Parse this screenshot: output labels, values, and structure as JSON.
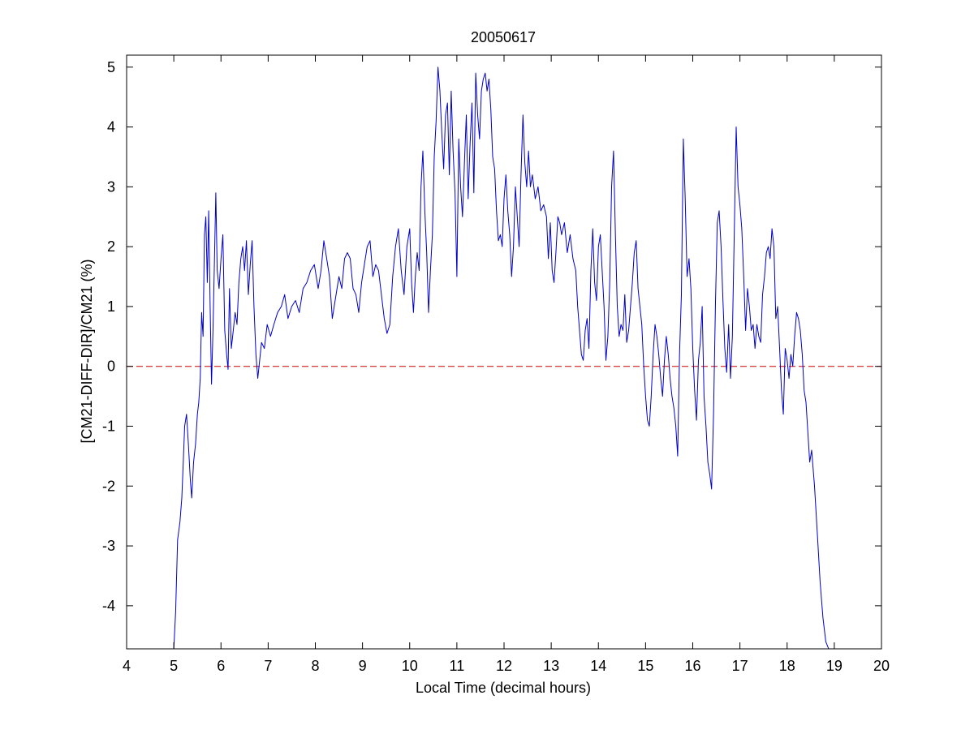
{
  "chart_data": {
    "type": "line",
    "title": "20050617",
    "xlabel": "Local Time (decimal hours)",
    "ylabel": "[CM21-DIFF-DIR]/CM21 (%)",
    "xlim": [
      4,
      20
    ],
    "ylim": [
      -4.72,
      5.2
    ],
    "xticks": [
      4,
      5,
      6,
      7,
      8,
      9,
      10,
      11,
      12,
      13,
      14,
      15,
      16,
      17,
      18,
      19,
      20
    ],
    "yticks": [
      -4,
      -3,
      -2,
      -1,
      0,
      1,
      2,
      3,
      4,
      5
    ],
    "grid": false,
    "reference_line": {
      "y": 0,
      "color": "#cc0000",
      "style": "dashed"
    },
    "series": [
      {
        "color": "#0000cc",
        "points": [
          [
            5.0,
            -4.72
          ],
          [
            5.04,
            -4.1
          ],
          [
            5.08,
            -2.9
          ],
          [
            5.13,
            -2.6
          ],
          [
            5.17,
            -2.2
          ],
          [
            5.2,
            -1.6
          ],
          [
            5.23,
            -1.0
          ],
          [
            5.27,
            -0.8
          ],
          [
            5.31,
            -1.3
          ],
          [
            5.35,
            -1.9
          ],
          [
            5.38,
            -2.2
          ],
          [
            5.42,
            -1.6
          ],
          [
            5.46,
            -1.3
          ],
          [
            5.5,
            -0.8
          ],
          [
            5.53,
            -0.6
          ],
          [
            5.56,
            -0.2
          ],
          [
            5.59,
            0.9
          ],
          [
            5.62,
            0.5
          ],
          [
            5.65,
            2.2
          ],
          [
            5.68,
            2.5
          ],
          [
            5.71,
            1.4
          ],
          [
            5.74,
            2.6
          ],
          [
            5.77,
            1.0
          ],
          [
            5.8,
            -0.3
          ],
          [
            5.83,
            0.6
          ],
          [
            5.86,
            1.7
          ],
          [
            5.89,
            2.9
          ],
          [
            5.92,
            1.6
          ],
          [
            5.96,
            1.3
          ],
          [
            6.0,
            1.8
          ],
          [
            6.04,
            2.2
          ],
          [
            6.08,
            0.6
          ],
          [
            6.12,
            0.2
          ],
          [
            6.15,
            -0.05
          ],
          [
            6.18,
            1.3
          ],
          [
            6.22,
            0.3
          ],
          [
            6.26,
            0.6
          ],
          [
            6.3,
            0.9
          ],
          [
            6.34,
            0.7
          ],
          [
            6.38,
            1.4
          ],
          [
            6.42,
            1.8
          ],
          [
            6.46,
            2.0
          ],
          [
            6.5,
            1.6
          ],
          [
            6.54,
            2.1
          ],
          [
            6.58,
            1.2
          ],
          [
            6.62,
            1.7
          ],
          [
            6.66,
            2.1
          ],
          [
            6.7,
            1.0
          ],
          [
            6.74,
            0.2
          ],
          [
            6.78,
            -0.2
          ],
          [
            6.82,
            0.1
          ],
          [
            6.86,
            0.4
          ],
          [
            6.92,
            0.3
          ],
          [
            6.98,
            0.7
          ],
          [
            7.05,
            0.5
          ],
          [
            7.12,
            0.7
          ],
          [
            7.2,
            0.9
          ],
          [
            7.28,
            1.0
          ],
          [
            7.35,
            1.2
          ],
          [
            7.42,
            0.8
          ],
          [
            7.5,
            1.0
          ],
          [
            7.58,
            1.1
          ],
          [
            7.66,
            0.9
          ],
          [
            7.74,
            1.3
          ],
          [
            7.82,
            1.4
          ],
          [
            7.9,
            1.6
          ],
          [
            7.98,
            1.7
          ],
          [
            8.06,
            1.3
          ],
          [
            8.12,
            1.6
          ],
          [
            8.18,
            2.1
          ],
          [
            8.24,
            1.8
          ],
          [
            8.3,
            1.5
          ],
          [
            8.36,
            0.8
          ],
          [
            8.42,
            1.1
          ],
          [
            8.5,
            1.5
          ],
          [
            8.56,
            1.3
          ],
          [
            8.62,
            1.8
          ],
          [
            8.68,
            1.9
          ],
          [
            8.74,
            1.8
          ],
          [
            8.8,
            1.3
          ],
          [
            8.86,
            1.2
          ],
          [
            8.92,
            0.9
          ],
          [
            8.98,
            1.4
          ],
          [
            9.04,
            1.7
          ],
          [
            9.1,
            2.0
          ],
          [
            9.16,
            2.1
          ],
          [
            9.22,
            1.5
          ],
          [
            9.28,
            1.7
          ],
          [
            9.34,
            1.6
          ],
          [
            9.4,
            1.2
          ],
          [
            9.46,
            0.8
          ],
          [
            9.52,
            0.55
          ],
          [
            9.58,
            0.7
          ],
          [
            9.64,
            1.5
          ],
          [
            9.7,
            2.0
          ],
          [
            9.76,
            2.3
          ],
          [
            9.82,
            1.6
          ],
          [
            9.88,
            1.2
          ],
          [
            9.94,
            2.0
          ],
          [
            10.0,
            2.3
          ],
          [
            10.04,
            1.4
          ],
          [
            10.08,
            0.9
          ],
          [
            10.12,
            1.5
          ],
          [
            10.16,
            1.9
          ],
          [
            10.2,
            1.6
          ],
          [
            10.24,
            3.0
          ],
          [
            10.28,
            3.6
          ],
          [
            10.32,
            2.6
          ],
          [
            10.36,
            1.9
          ],
          [
            10.4,
            0.9
          ],
          [
            10.44,
            1.6
          ],
          [
            10.48,
            2.2
          ],
          [
            10.52,
            3.5
          ],
          [
            10.56,
            4.1
          ],
          [
            10.6,
            5.0
          ],
          [
            10.64,
            4.6
          ],
          [
            10.68,
            3.9
          ],
          [
            10.72,
            3.3
          ],
          [
            10.76,
            4.2
          ],
          [
            10.8,
            4.4
          ],
          [
            10.84,
            3.2
          ],
          [
            10.88,
            4.6
          ],
          [
            10.92,
            3.6
          ],
          [
            10.96,
            2.9
          ],
          [
            11.0,
            1.5
          ],
          [
            11.04,
            3.8
          ],
          [
            11.08,
            3.0
          ],
          [
            11.12,
            2.5
          ],
          [
            11.16,
            3.4
          ],
          [
            11.2,
            4.2
          ],
          [
            11.24,
            2.8
          ],
          [
            11.28,
            3.7
          ],
          [
            11.32,
            4.4
          ],
          [
            11.36,
            2.9
          ],
          [
            11.4,
            4.9
          ],
          [
            11.44,
            4.2
          ],
          [
            11.48,
            3.8
          ],
          [
            11.52,
            4.6
          ],
          [
            11.56,
            4.8
          ],
          [
            11.6,
            4.9
          ],
          [
            11.64,
            4.6
          ],
          [
            11.68,
            4.8
          ],
          [
            11.72,
            4.3
          ],
          [
            11.76,
            3.5
          ],
          [
            11.8,
            3.3
          ],
          [
            11.84,
            2.6
          ],
          [
            11.88,
            2.1
          ],
          [
            11.92,
            2.2
          ],
          [
            11.96,
            2.0
          ],
          [
            12.0,
            2.8
          ],
          [
            12.04,
            3.2
          ],
          [
            12.08,
            2.6
          ],
          [
            12.12,
            2.2
          ],
          [
            12.16,
            1.5
          ],
          [
            12.2,
            2.0
          ],
          [
            12.24,
            3.0
          ],
          [
            12.28,
            2.5
          ],
          [
            12.32,
            2.0
          ],
          [
            12.36,
            3.2
          ],
          [
            12.4,
            4.2
          ],
          [
            12.44,
            3.4
          ],
          [
            12.48,
            3.0
          ],
          [
            12.52,
            3.6
          ],
          [
            12.56,
            3.0
          ],
          [
            12.6,
            3.2
          ],
          [
            12.66,
            2.8
          ],
          [
            12.72,
            3.0
          ],
          [
            12.78,
            2.6
          ],
          [
            12.84,
            2.7
          ],
          [
            12.9,
            2.5
          ],
          [
            12.94,
            1.8
          ],
          [
            12.98,
            2.4
          ],
          [
            13.02,
            1.6
          ],
          [
            13.06,
            1.4
          ],
          [
            13.1,
            1.9
          ],
          [
            13.14,
            2.5
          ],
          [
            13.18,
            2.4
          ],
          [
            13.22,
            2.2
          ],
          [
            13.28,
            2.4
          ],
          [
            13.34,
            1.9
          ],
          [
            13.4,
            2.2
          ],
          [
            13.46,
            1.8
          ],
          [
            13.52,
            1.6
          ],
          [
            13.56,
            1.0
          ],
          [
            13.6,
            0.6
          ],
          [
            13.64,
            0.2
          ],
          [
            13.68,
            0.1
          ],
          [
            13.72,
            0.6
          ],
          [
            13.76,
            0.8
          ],
          [
            13.8,
            0.3
          ],
          [
            13.84,
            1.6
          ],
          [
            13.88,
            2.3
          ],
          [
            13.92,
            1.4
          ],
          [
            13.96,
            1.1
          ],
          [
            14.0,
            2.0
          ],
          [
            14.04,
            2.2
          ],
          [
            14.08,
            1.6
          ],
          [
            14.12,
            1.0
          ],
          [
            14.16,
            0.1
          ],
          [
            14.2,
            0.5
          ],
          [
            14.24,
            1.4
          ],
          [
            14.28,
            3.0
          ],
          [
            14.32,
            3.6
          ],
          [
            14.36,
            2.2
          ],
          [
            14.4,
            1.0
          ],
          [
            14.44,
            0.5
          ],
          [
            14.48,
            0.7
          ],
          [
            14.52,
            0.6
          ],
          [
            14.56,
            1.2
          ],
          [
            14.6,
            0.4
          ],
          [
            14.64,
            0.6
          ],
          [
            14.68,
            1.0
          ],
          [
            14.72,
            1.4
          ],
          [
            14.76,
            1.9
          ],
          [
            14.8,
            2.1
          ],
          [
            14.84,
            1.3
          ],
          [
            14.88,
            1.0
          ],
          [
            14.92,
            0.7
          ],
          [
            14.96,
            0.0
          ],
          [
            15.0,
            -0.5
          ],
          [
            15.04,
            -0.9
          ],
          [
            15.08,
            -1.0
          ],
          [
            15.12,
            -0.5
          ],
          [
            15.16,
            0.2
          ],
          [
            15.2,
            0.7
          ],
          [
            15.24,
            0.5
          ],
          [
            15.28,
            0.2
          ],
          [
            15.32,
            -0.2
          ],
          [
            15.36,
            -0.5
          ],
          [
            15.4,
            0.1
          ],
          [
            15.44,
            0.5
          ],
          [
            15.48,
            0.2
          ],
          [
            15.52,
            -0.2
          ],
          [
            15.56,
            -0.5
          ],
          [
            15.6,
            -0.7
          ],
          [
            15.64,
            -1.0
          ],
          [
            15.68,
            -1.5
          ],
          [
            15.72,
            0.2
          ],
          [
            15.76,
            1.2
          ],
          [
            15.8,
            3.8
          ],
          [
            15.84,
            2.8
          ],
          [
            15.88,
            1.5
          ],
          [
            15.92,
            1.8
          ],
          [
            15.96,
            1.3
          ],
          [
            16.0,
            0.3
          ],
          [
            16.04,
            -0.4
          ],
          [
            16.08,
            -0.9
          ],
          [
            16.12,
            0.1
          ],
          [
            16.16,
            0.4
          ],
          [
            16.2,
            1.0
          ],
          [
            16.24,
            -0.5
          ],
          [
            16.28,
            -1.0
          ],
          [
            16.32,
            -1.6
          ],
          [
            16.36,
            -1.8
          ],
          [
            16.4,
            -2.05
          ],
          [
            16.44,
            -0.8
          ],
          [
            16.48,
            1.0
          ],
          [
            16.52,
            2.4
          ],
          [
            16.56,
            2.6
          ],
          [
            16.6,
            2.0
          ],
          [
            16.64,
            1.1
          ],
          [
            16.68,
            0.3
          ],
          [
            16.72,
            -0.1
          ],
          [
            16.76,
            0.7
          ],
          [
            16.8,
            -0.2
          ],
          [
            16.84,
            0.5
          ],
          [
            16.88,
            2.2
          ],
          [
            16.92,
            4.0
          ],
          [
            16.96,
            3.0
          ],
          [
            17.0,
            2.7
          ],
          [
            17.04,
            2.3
          ],
          [
            17.08,
            1.5
          ],
          [
            17.12,
            0.6
          ],
          [
            17.16,
            1.3
          ],
          [
            17.2,
            1.0
          ],
          [
            17.24,
            0.6
          ],
          [
            17.28,
            0.7
          ],
          [
            17.32,
            0.3
          ],
          [
            17.36,
            0.7
          ],
          [
            17.4,
            0.5
          ],
          [
            17.44,
            0.4
          ],
          [
            17.48,
            1.2
          ],
          [
            17.52,
            1.5
          ],
          [
            17.56,
            1.9
          ],
          [
            17.6,
            2.0
          ],
          [
            17.64,
            1.8
          ],
          [
            17.68,
            2.3
          ],
          [
            17.72,
            2.0
          ],
          [
            17.76,
            0.8
          ],
          [
            17.8,
            1.0
          ],
          [
            17.84,
            0.3
          ],
          [
            17.88,
            -0.4
          ],
          [
            17.92,
            -0.8
          ],
          [
            17.96,
            0.3
          ],
          [
            18.0,
            0.1
          ],
          [
            18.04,
            -0.2
          ],
          [
            18.08,
            0.2
          ],
          [
            18.12,
            0.0
          ],
          [
            18.16,
            0.5
          ],
          [
            18.2,
            0.9
          ],
          [
            18.24,
            0.8
          ],
          [
            18.28,
            0.6
          ],
          [
            18.32,
            0.2
          ],
          [
            18.36,
            -0.4
          ],
          [
            18.4,
            -0.6
          ],
          [
            18.44,
            -1.1
          ],
          [
            18.48,
            -1.6
          ],
          [
            18.52,
            -1.4
          ],
          [
            18.58,
            -2.0
          ],
          [
            18.64,
            -2.8
          ],
          [
            18.7,
            -3.6
          ],
          [
            18.76,
            -4.2
          ],
          [
            18.82,
            -4.6
          ],
          [
            18.88,
            -4.72
          ]
        ]
      }
    ]
  }
}
